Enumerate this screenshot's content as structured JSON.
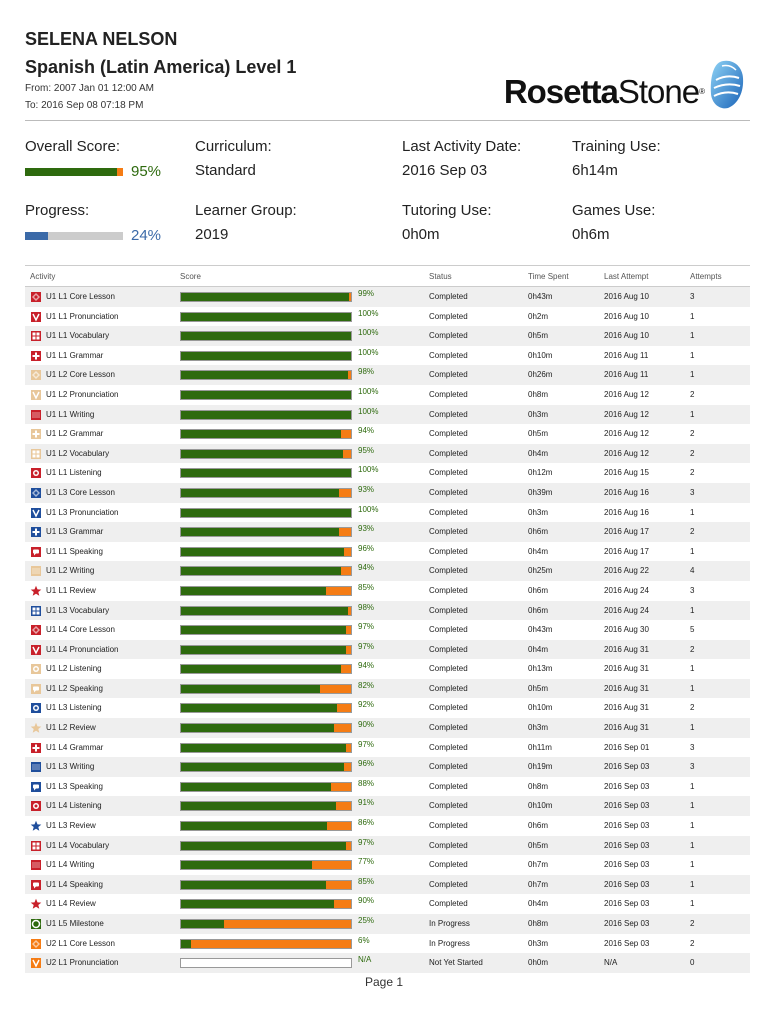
{
  "header": {
    "name": "SELENA NELSON",
    "course": "Spanish (Latin America) Level 1",
    "from": "From: 2007 Jan 01 12:00 AM",
    "to": "To: 2016 Sep 08 07:18 PM"
  },
  "logo": {
    "bold": "Rosetta",
    "rest": "Stone",
    "reg": "®"
  },
  "stats": {
    "overall_label": "Overall Score:",
    "overall_pct": "95%",
    "overall_value": 95,
    "progress_label": "Progress:",
    "progress_pct": "24%",
    "progress_value": 24,
    "curriculum_label": "Curriculum:",
    "curriculum_value": "Standard",
    "learner_label": "Learner Group:",
    "learner_value": "2019",
    "last_activity_label": "Last Activity Date:",
    "last_activity_value": "2016 Sep 03",
    "tutoring_label": "Tutoring Use:",
    "tutoring_value": "0h0m",
    "training_label": "Training Use:",
    "training_value": "6h14m",
    "games_label": "Games Use:",
    "games_value": "0h6m"
  },
  "colors": {
    "green": "#2e6a0e",
    "orange": "#f57c14",
    "blue": "#3b6aa8",
    "red": "#c8202a",
    "tan": "#e8c79a",
    "navy": "#1f4e9c"
  },
  "table": {
    "headers": [
      "Activity",
      "Score",
      "Status",
      "Time Spent",
      "Last Attempt",
      "Attempts"
    ],
    "rows": [
      {
        "icon": "red-diamond-icon",
        "activity": "U1 L1 Core Lesson",
        "score": "99%",
        "value": 99,
        "status": "Completed",
        "time": "0h43m",
        "last": "2016 Aug 10",
        "attempts": "3"
      },
      {
        "icon": "red-pronunciation-icon",
        "activity": "U1 L1 Pronunciation",
        "score": "100%",
        "value": 100,
        "status": "Completed",
        "time": "0h2m",
        "last": "2016 Aug 10",
        "attempts": "1"
      },
      {
        "icon": "red-vocabulary-icon",
        "activity": "U1 L1 Vocabulary",
        "score": "100%",
        "value": 100,
        "status": "Completed",
        "time": "0h5m",
        "last": "2016 Aug 10",
        "attempts": "1"
      },
      {
        "icon": "red-grammar-icon",
        "activity": "U1 L1 Grammar",
        "score": "100%",
        "value": 100,
        "status": "Completed",
        "time": "0h10m",
        "last": "2016 Aug 11",
        "attempts": "1"
      },
      {
        "icon": "tan-diamond-icon",
        "activity": "U1 L2 Core Lesson",
        "score": "98%",
        "value": 98,
        "status": "Completed",
        "time": "0h26m",
        "last": "2016 Aug 11",
        "attempts": "1"
      },
      {
        "icon": "tan-pronunciation-icon",
        "activity": "U1 L2 Pronunciation",
        "score": "100%",
        "value": 100,
        "status": "Completed",
        "time": "0h8m",
        "last": "2016 Aug 12",
        "attempts": "2"
      },
      {
        "icon": "red-writing-icon",
        "activity": "U1 L1 Writing",
        "score": "100%",
        "value": 100,
        "status": "Completed",
        "time": "0h3m",
        "last": "2016 Aug 12",
        "attempts": "1"
      },
      {
        "icon": "tan-grammar-icon",
        "activity": "U1 L2 Grammar",
        "score": "94%",
        "value": 94,
        "status": "Completed",
        "time": "0h5m",
        "last": "2016 Aug 12",
        "attempts": "2"
      },
      {
        "icon": "tan-vocabulary-icon",
        "activity": "U1 L2 Vocabulary",
        "score": "95%",
        "value": 95,
        "status": "Completed",
        "time": "0h4m",
        "last": "2016 Aug 12",
        "attempts": "2"
      },
      {
        "icon": "red-listening-icon",
        "activity": "U1 L1 Listening",
        "score": "100%",
        "value": 100,
        "status": "Completed",
        "time": "0h12m",
        "last": "2016 Aug 15",
        "attempts": "2"
      },
      {
        "icon": "blue-diamond-icon",
        "activity": "U1 L3 Core Lesson",
        "score": "93%",
        "value": 93,
        "status": "Completed",
        "time": "0h39m",
        "last": "2016 Aug 16",
        "attempts": "3"
      },
      {
        "icon": "blue-pronunciation-icon",
        "activity": "U1 L3 Pronunciation",
        "score": "100%",
        "value": 100,
        "status": "Completed",
        "time": "0h3m",
        "last": "2016 Aug 16",
        "attempts": "1"
      },
      {
        "icon": "blue-grammar-icon",
        "activity": "U1 L3 Grammar",
        "score": "93%",
        "value": 93,
        "status": "Completed",
        "time": "0h6m",
        "last": "2016 Aug 17",
        "attempts": "2"
      },
      {
        "icon": "red-speaking-icon",
        "activity": "U1 L1 Speaking",
        "score": "96%",
        "value": 96,
        "status": "Completed",
        "time": "0h4m",
        "last": "2016 Aug 17",
        "attempts": "1"
      },
      {
        "icon": "tan-writing-icon",
        "activity": "U1 L2 Writing",
        "score": "94%",
        "value": 94,
        "status": "Completed",
        "time": "0h25m",
        "last": "2016 Aug 22",
        "attempts": "4"
      },
      {
        "icon": "red-review-star-icon",
        "activity": "U1 L1 Review",
        "score": "85%",
        "value": 85,
        "status": "Completed",
        "time": "0h6m",
        "last": "2016 Aug 24",
        "attempts": "3"
      },
      {
        "icon": "blue-vocabulary-icon",
        "activity": "U1 L3 Vocabulary",
        "score": "98%",
        "value": 98,
        "status": "Completed",
        "time": "0h6m",
        "last": "2016 Aug 24",
        "attempts": "1"
      },
      {
        "icon": "red-diamond-icon",
        "activity": "U1 L4 Core Lesson",
        "score": "97%",
        "value": 97,
        "status": "Completed",
        "time": "0h43m",
        "last": "2016 Aug 30",
        "attempts": "5"
      },
      {
        "icon": "red-pronunciation-icon",
        "activity": "U1 L4 Pronunciation",
        "score": "97%",
        "value": 97,
        "status": "Completed",
        "time": "0h4m",
        "last": "2016 Aug 31",
        "attempts": "2"
      },
      {
        "icon": "tan-listening-icon",
        "activity": "U1 L2 Listening",
        "score": "94%",
        "value": 94,
        "status": "Completed",
        "time": "0h13m",
        "last": "2016 Aug 31",
        "attempts": "1"
      },
      {
        "icon": "tan-speaking-icon",
        "activity": "U1 L2 Speaking",
        "score": "82%",
        "value": 82,
        "status": "Completed",
        "time": "0h5m",
        "last": "2016 Aug 31",
        "attempts": "1"
      },
      {
        "icon": "blue-listening-icon",
        "activity": "U1 L3 Listening",
        "score": "92%",
        "value": 92,
        "status": "Completed",
        "time": "0h10m",
        "last": "2016 Aug 31",
        "attempts": "2"
      },
      {
        "icon": "tan-review-star-icon",
        "activity": "U1 L2 Review",
        "score": "90%",
        "value": 90,
        "status": "Completed",
        "time": "0h3m",
        "last": "2016 Aug 31",
        "attempts": "1"
      },
      {
        "icon": "red-grammar-icon",
        "activity": "U1 L4 Grammar",
        "score": "97%",
        "value": 97,
        "status": "Completed",
        "time": "0h11m",
        "last": "2016 Sep 01",
        "attempts": "3"
      },
      {
        "icon": "blue-writing-icon",
        "activity": "U1 L3 Writing",
        "score": "96%",
        "value": 96,
        "status": "Completed",
        "time": "0h19m",
        "last": "2016 Sep 03",
        "attempts": "3"
      },
      {
        "icon": "blue-speaking-icon",
        "activity": "U1 L3 Speaking",
        "score": "88%",
        "value": 88,
        "status": "Completed",
        "time": "0h8m",
        "last": "2016 Sep 03",
        "attempts": "1"
      },
      {
        "icon": "red-listening-icon",
        "activity": "U1 L4 Listening",
        "score": "91%",
        "value": 91,
        "status": "Completed",
        "time": "0h10m",
        "last": "2016 Sep 03",
        "attempts": "1"
      },
      {
        "icon": "blue-review-star-icon",
        "activity": "U1 L3 Review",
        "score": "86%",
        "value": 86,
        "status": "Completed",
        "time": "0h6m",
        "last": "2016 Sep 03",
        "attempts": "1"
      },
      {
        "icon": "red-vocabulary-icon",
        "activity": "U1 L4 Vocabulary",
        "score": "97%",
        "value": 97,
        "status": "Completed",
        "time": "0h5m",
        "last": "2016 Sep 03",
        "attempts": "1"
      },
      {
        "icon": "red-writing-icon",
        "activity": "U1 L4 Writing",
        "score": "77%",
        "value": 77,
        "status": "Completed",
        "time": "0h7m",
        "last": "2016 Sep 03",
        "attempts": "1"
      },
      {
        "icon": "red-speaking-icon",
        "activity": "U1 L4 Speaking",
        "score": "85%",
        "value": 85,
        "status": "Completed",
        "time": "0h7m",
        "last": "2016 Sep 03",
        "attempts": "1"
      },
      {
        "icon": "red-review-star-icon",
        "activity": "U1 L4 Review",
        "score": "90%",
        "value": 90,
        "status": "Completed",
        "time": "0h4m",
        "last": "2016 Sep 03",
        "attempts": "1"
      },
      {
        "icon": "green-milestone-icon",
        "activity": "U1 L5 Milestone",
        "score": "25%",
        "value": 25,
        "status": "In Progress",
        "time": "0h8m",
        "last": "2016 Sep 03",
        "attempts": "2"
      },
      {
        "icon": "orange-diamond-icon",
        "activity": "U2 L1 Core Lesson",
        "score": "6%",
        "value": 6,
        "status": "In Progress",
        "time": "0h3m",
        "last": "2016 Sep 03",
        "attempts": "2"
      },
      {
        "icon": "orange-pronunciation-icon",
        "activity": "U2 L1 Pronunciation",
        "score": "N/A",
        "value": null,
        "status": "Not Yet Started",
        "time": "0h0m",
        "last": "N/A",
        "attempts": "0"
      }
    ]
  },
  "footer": {
    "page": "Page 1"
  }
}
